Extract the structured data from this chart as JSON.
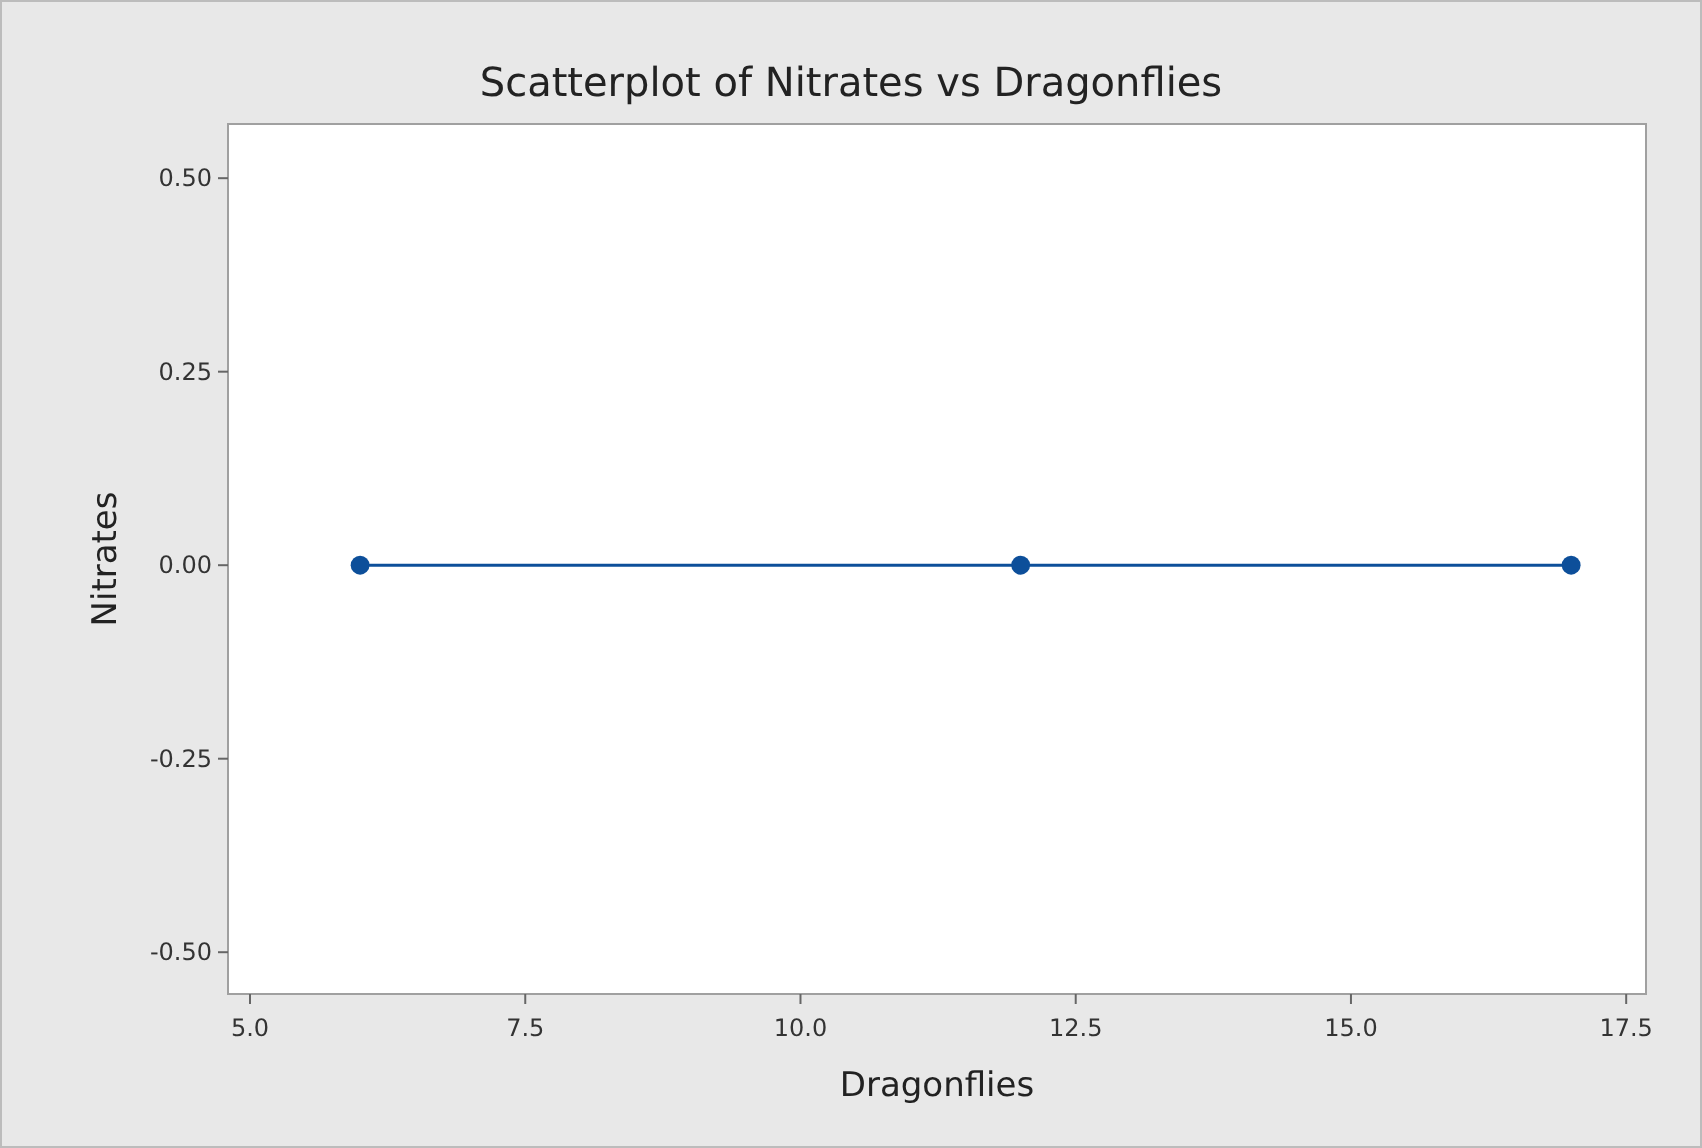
{
  "chart_data": {
    "type": "line",
    "title": "Scatterplot of Nitrates vs Dragonflies",
    "xlabel": "Dragonflies",
    "ylabel": "Nitrates",
    "x": [
      6,
      12,
      17
    ],
    "series": [
      {
        "color": "#0d4f9a",
        "values": [
          0,
          0,
          0
        ]
      }
    ],
    "marker": "circle",
    "line_style": "solid",
    "xlim": [
      4.8,
      17.68
    ],
    "xticks": [
      {
        "value": 5,
        "label": "5.0"
      },
      {
        "value": 7.5,
        "label": "7.5"
      },
      {
        "value": 10,
        "label": "10.0"
      },
      {
        "value": 12.5,
        "label": "12.5"
      },
      {
        "value": 15,
        "label": "15.0"
      },
      {
        "value": 17.5,
        "label": "17.5"
      }
    ],
    "ylim": [
      -0.554,
      0.57
    ],
    "yticks": [
      {
        "value": -0.5,
        "label": "-0.50"
      },
      {
        "value": -0.25,
        "label": "-0.25"
      },
      {
        "value": 0,
        "label": "0.00"
      },
      {
        "value": 0.25,
        "label": "0.25"
      },
      {
        "value": 0.5,
        "label": "0.50"
      }
    ],
    "grid": false
  }
}
